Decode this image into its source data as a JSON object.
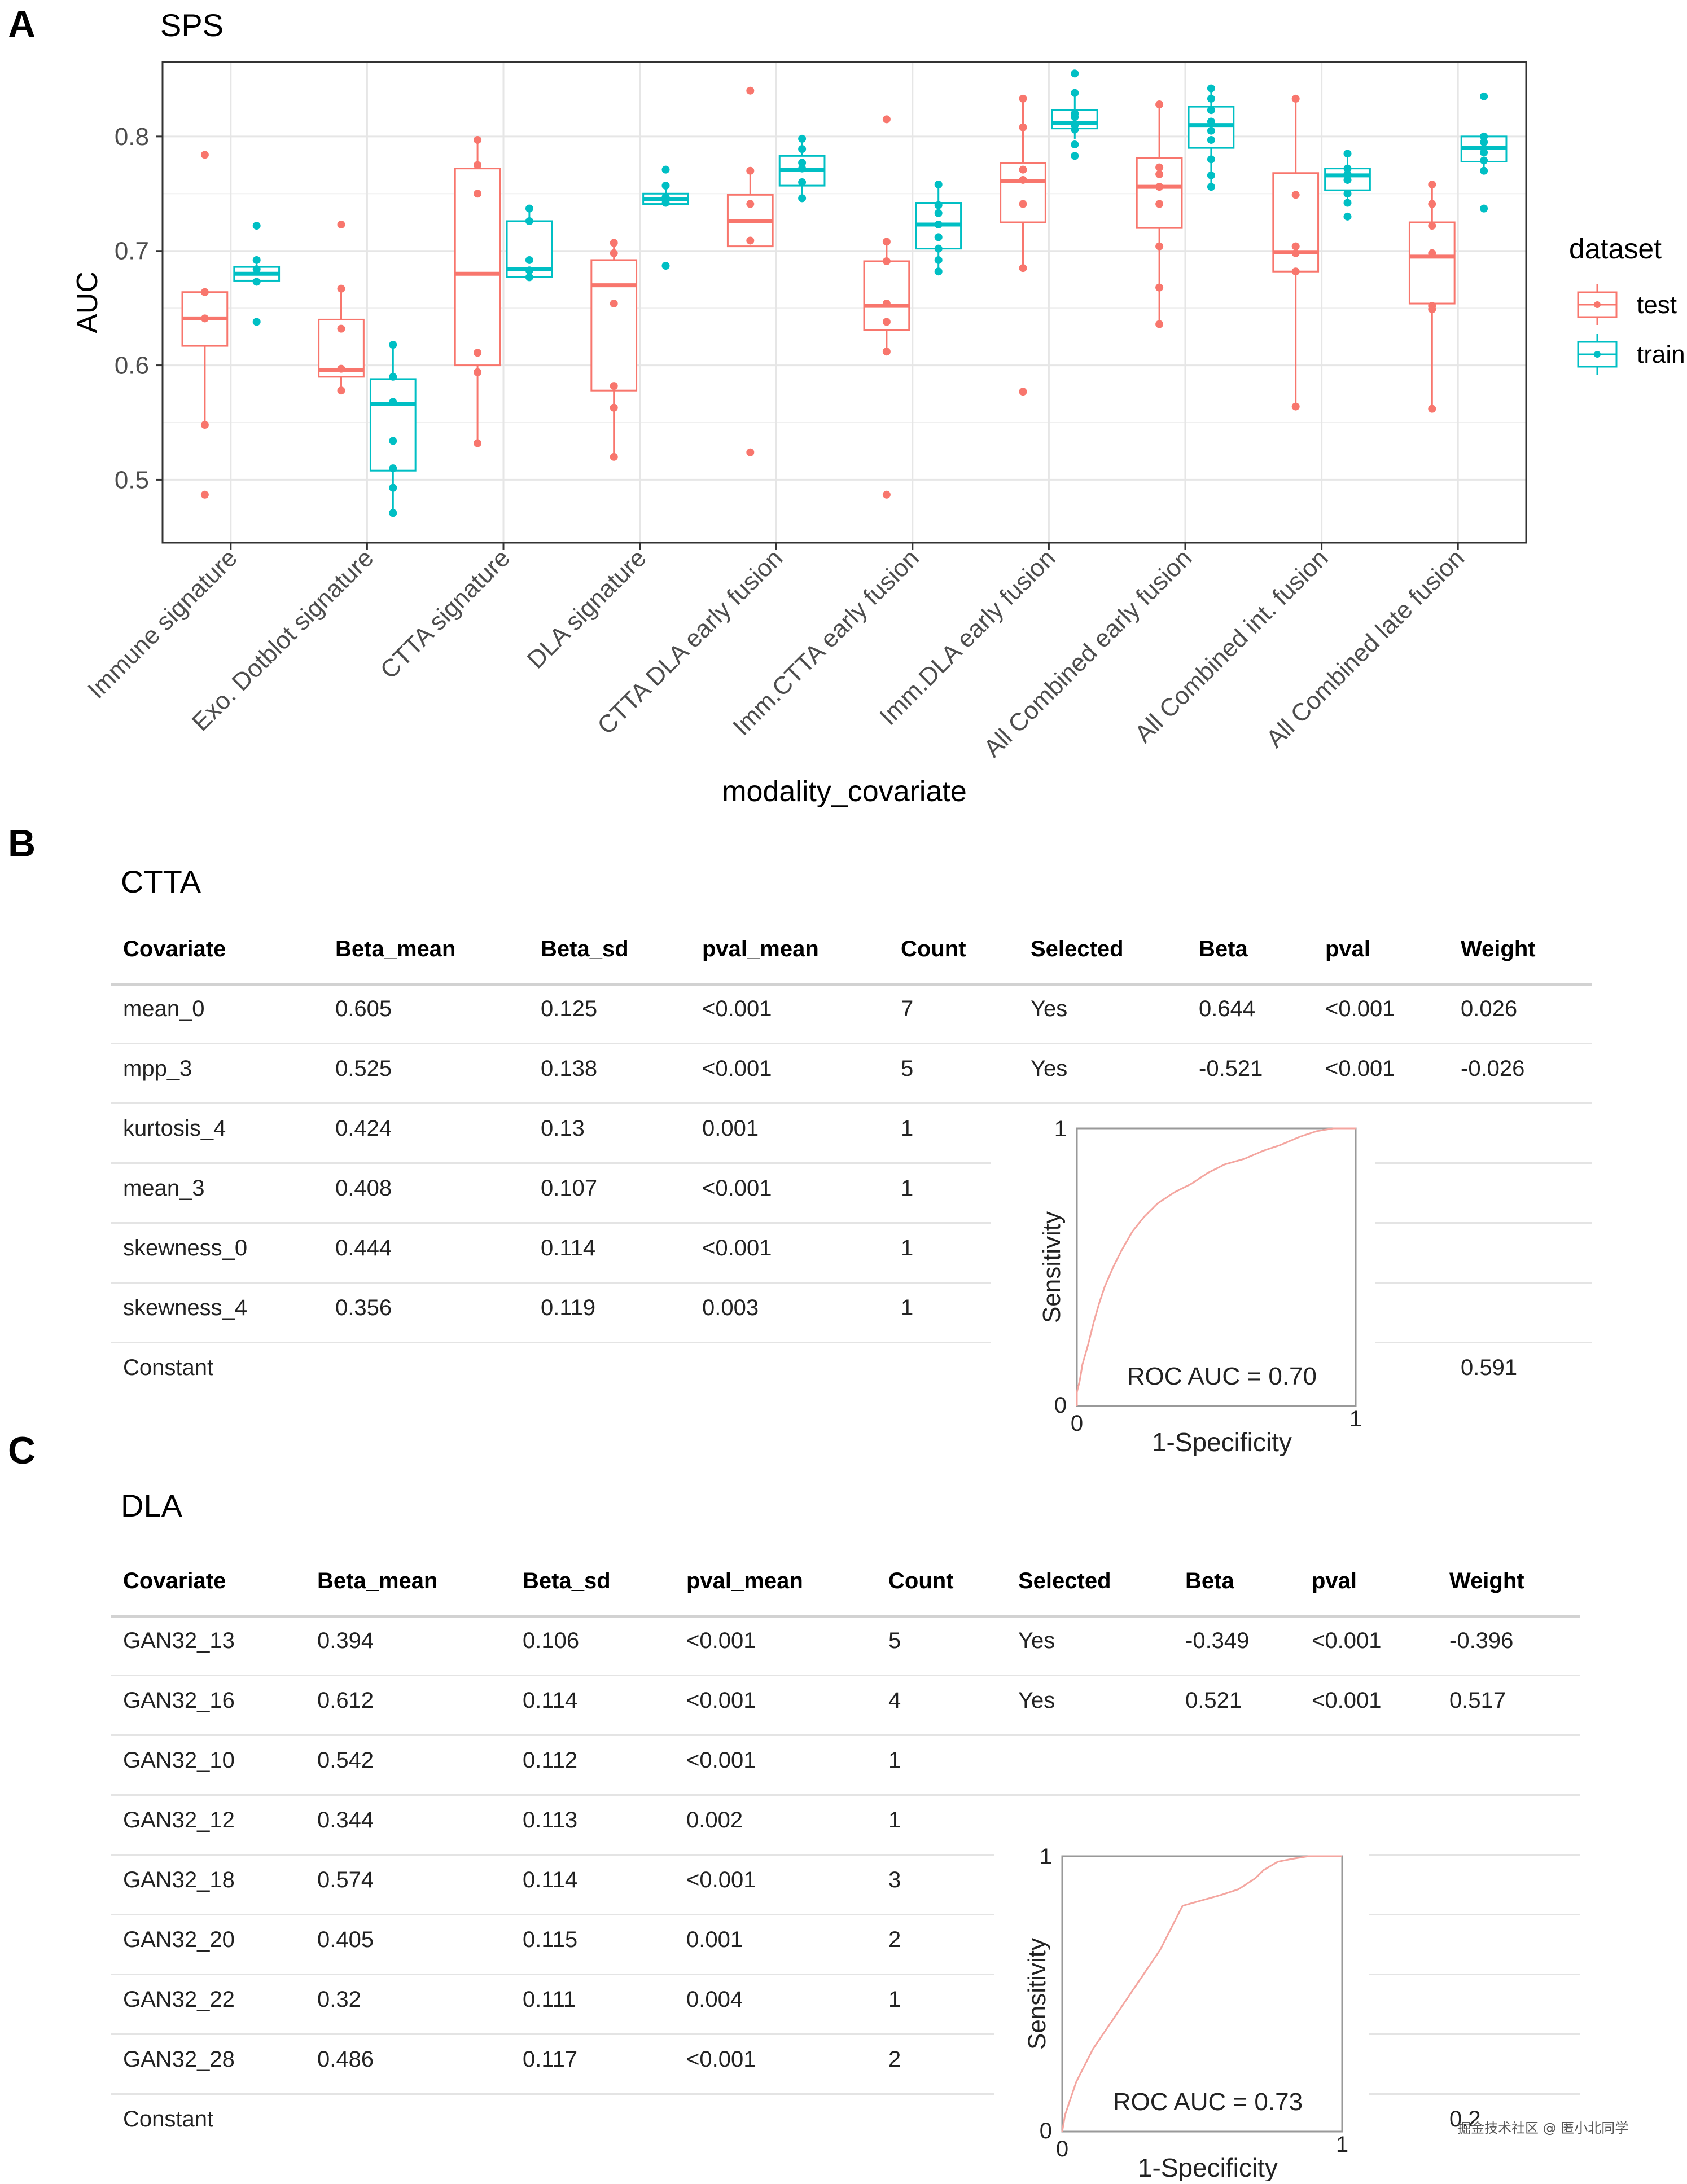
{
  "panels": {
    "a": "A",
    "b": "B",
    "c": "C"
  },
  "chart_data": {
    "type": "box",
    "title": "SPS",
    "xlabel": "modality_covariate",
    "ylabel": "AUC",
    "ylim": [
      0.445,
      0.865
    ],
    "yticks": [
      0.5,
      0.6,
      0.7,
      0.8
    ],
    "ytick_labels": [
      "0.5",
      "0.6",
      "0.7",
      "0.8"
    ],
    "legend": {
      "title": "dataset",
      "position": "right"
    },
    "categories": [
      "Immune signature",
      "Exo. Dotblot signature",
      "CTTA signature",
      "DLA signature",
      "CTTA DLA early fusion",
      "Imm.CTTA early fusion",
      "Imm.DLA early fusion",
      "All Combined early fusion",
      "All Combined int. fusion",
      "All Combined late fusion"
    ],
    "series": [
      {
        "name": "test",
        "color": "#F8766D",
        "boxes": [
          {
            "min": 0.548,
            "q1": 0.617,
            "median": 0.641,
            "q3": 0.664,
            "max": 0.664,
            "points": [
              0.784,
              0.664,
              0.641,
              0.548,
              0.487
            ]
          },
          {
            "min": 0.578,
            "q1": 0.59,
            "median": 0.596,
            "q3": 0.64,
            "max": 0.667,
            "points": [
              0.723,
              0.667,
              0.632,
              0.597,
              0.578
            ]
          },
          {
            "min": 0.532,
            "q1": 0.6,
            "median": 0.68,
            "q3": 0.772,
            "max": 0.797,
            "points": [
              0.797,
              0.775,
              0.75,
              0.611,
              0.594,
              0.532
            ]
          },
          {
            "min": 0.52,
            "q1": 0.578,
            "median": 0.67,
            "q3": 0.692,
            "max": 0.707,
            "points": [
              0.707,
              0.698,
              0.654,
              0.582,
              0.563,
              0.52
            ]
          },
          {
            "min": 0.704,
            "q1": 0.704,
            "median": 0.726,
            "q3": 0.749,
            "max": 0.77,
            "points": [
              0.84,
              0.77,
              0.741,
              0.709,
              0.524
            ]
          },
          {
            "min": 0.612,
            "q1": 0.631,
            "median": 0.652,
            "q3": 0.691,
            "max": 0.708,
            "points": [
              0.815,
              0.708,
              0.691,
              0.654,
              0.638,
              0.612,
              0.487
            ]
          },
          {
            "min": 0.685,
            "q1": 0.725,
            "median": 0.761,
            "q3": 0.777,
            "max": 0.833,
            "points": [
              0.833,
              0.808,
              0.771,
              0.762,
              0.741,
              0.685,
              0.577
            ]
          },
          {
            "min": 0.636,
            "q1": 0.72,
            "median": 0.756,
            "q3": 0.781,
            "max": 0.828,
            "points": [
              0.828,
              0.773,
              0.767,
              0.756,
              0.741,
              0.704,
              0.668,
              0.636
            ]
          },
          {
            "min": 0.564,
            "q1": 0.682,
            "median": 0.699,
            "q3": 0.768,
            "max": 0.833,
            "points": [
              0.833,
              0.749,
              0.704,
              0.698,
              0.682,
              0.564
            ]
          },
          {
            "min": 0.562,
            "q1": 0.654,
            "median": 0.695,
            "q3": 0.725,
            "max": 0.758,
            "points": [
              0.758,
              0.741,
              0.722,
              0.698,
              0.652,
              0.649,
              0.562
            ]
          }
        ]
      },
      {
        "name": "train",
        "color": "#00BFC4",
        "boxes": [
          {
            "min": 0.67,
            "q1": 0.674,
            "median": 0.68,
            "q3": 0.686,
            "max": 0.692,
            "points": [
              0.722,
              0.692,
              0.684,
              0.673,
              0.638
            ]
          },
          {
            "min": 0.471,
            "q1": 0.508,
            "median": 0.566,
            "q3": 0.588,
            "max": 0.618,
            "points": [
              0.618,
              0.59,
              0.568,
              0.534,
              0.51,
              0.493,
              0.471
            ]
          },
          {
            "min": 0.677,
            "q1": 0.677,
            "median": 0.684,
            "q3": 0.726,
            "max": 0.737,
            "points": [
              0.737,
              0.726,
              0.692,
              0.683,
              0.677
            ]
          },
          {
            "min": 0.741,
            "q1": 0.741,
            "median": 0.745,
            "q3": 0.75,
            "max": 0.757,
            "points": [
              0.771,
              0.757,
              0.747,
              0.742,
              0.687
            ]
          },
          {
            "min": 0.746,
            "q1": 0.757,
            "median": 0.771,
            "q3": 0.783,
            "max": 0.798,
            "points": [
              0.798,
              0.789,
              0.777,
              0.772,
              0.76,
              0.746
            ]
          },
          {
            "min": 0.682,
            "q1": 0.702,
            "median": 0.723,
            "q3": 0.742,
            "max": 0.758,
            "points": [
              0.758,
              0.74,
              0.733,
              0.723,
              0.712,
              0.702,
              0.692,
              0.682
            ]
          },
          {
            "min": 0.798,
            "q1": 0.807,
            "median": 0.812,
            "q3": 0.823,
            "max": 0.838,
            "points": [
              0.855,
              0.838,
              0.82,
              0.817,
              0.81,
              0.806,
              0.793,
              0.783
            ]
          },
          {
            "min": 0.756,
            "q1": 0.79,
            "median": 0.81,
            "q3": 0.826,
            "max": 0.842,
            "points": [
              0.842,
              0.833,
              0.823,
              0.813,
              0.805,
              0.797,
              0.78,
              0.766,
              0.756
            ]
          },
          {
            "min": 0.742,
            "q1": 0.753,
            "median": 0.766,
            "q3": 0.772,
            "max": 0.785,
            "points": [
              0.785,
              0.772,
              0.767,
              0.762,
              0.75,
              0.742,
              0.73
            ]
          },
          {
            "min": 0.77,
            "q1": 0.778,
            "median": 0.79,
            "q3": 0.8,
            "max": 0.8,
            "points": [
              0.835,
              0.8,
              0.795,
              0.786,
              0.779,
              0.77,
              0.737
            ]
          }
        ]
      }
    ]
  },
  "table_b": {
    "title": "CTTA",
    "headers": [
      "Covariate",
      "Beta_mean",
      "Beta_sd",
      "pval_mean",
      "Count",
      "Selected",
      "Beta",
      "pval",
      "Weight"
    ],
    "rows": [
      [
        "mean_0",
        "0.605",
        "0.125",
        "<0.001",
        "7",
        "Yes",
        "0.644",
        "<0.001",
        "0.026"
      ],
      [
        "mpp_3",
        "0.525",
        "0.138",
        "<0.001",
        "5",
        "Yes",
        "-0.521",
        "<0.001",
        "-0.026"
      ],
      [
        "kurtosis_4",
        "0.424",
        "0.13",
        "0.001",
        "1",
        "",
        "",
        "",
        ""
      ],
      [
        "mean_3",
        "0.408",
        "0.107",
        "<0.001",
        "1",
        "",
        "",
        "",
        ""
      ],
      [
        "skewness_0",
        "0.444",
        "0.114",
        "<0.001",
        "1",
        "",
        "",
        "",
        ""
      ],
      [
        "skewness_4",
        "0.356",
        "0.119",
        "0.003",
        "1",
        "",
        "",
        "",
        ""
      ],
      [
        "Constant",
        "",
        "",
        "",
        "",
        "",
        "",
        "",
        "0.591"
      ]
    ],
    "roc": {
      "label": "ROC AUC = 0.70",
      "xlabel": "1-Specificity",
      "ylabel": "Sensitivity",
      "x_ticks": [
        "0",
        "1"
      ],
      "y_ticks": [
        "0",
        "1"
      ],
      "color": "#F4A6A0",
      "curve": [
        [
          0,
          0
        ],
        [
          0,
          0.05
        ],
        [
          0.01,
          0.09
        ],
        [
          0.02,
          0.15
        ],
        [
          0.04,
          0.22
        ],
        [
          0.06,
          0.3
        ],
        [
          0.08,
          0.37
        ],
        [
          0.1,
          0.43
        ],
        [
          0.13,
          0.5
        ],
        [
          0.16,
          0.56
        ],
        [
          0.2,
          0.63
        ],
        [
          0.24,
          0.68
        ],
        [
          0.29,
          0.73
        ],
        [
          0.35,
          0.77
        ],
        [
          0.41,
          0.8
        ],
        [
          0.47,
          0.84
        ],
        [
          0.53,
          0.87
        ],
        [
          0.6,
          0.89
        ],
        [
          0.67,
          0.92
        ],
        [
          0.73,
          0.94
        ],
        [
          0.8,
          0.97
        ],
        [
          0.86,
          0.99
        ],
        [
          0.92,
          1.0
        ],
        [
          1,
          1
        ]
      ]
    }
  },
  "table_c": {
    "title": "DLA",
    "headers": [
      "Covariate",
      "Beta_mean",
      "Beta_sd",
      "pval_mean",
      "Count",
      "Selected",
      "Beta",
      "pval",
      "Weight"
    ],
    "rows": [
      [
        "GAN32_13",
        "0.394",
        "0.106",
        "<0.001",
        "5",
        "Yes",
        "-0.349",
        "<0.001",
        "-0.396"
      ],
      [
        "GAN32_16",
        "0.612",
        "0.114",
        "<0.001",
        "4",
        "Yes",
        "0.521",
        "<0.001",
        "0.517"
      ],
      [
        "GAN32_10",
        "0.542",
        "0.112",
        "<0.001",
        "1",
        "",
        "",
        "",
        ""
      ],
      [
        "GAN32_12",
        "0.344",
        "0.113",
        "0.002",
        "1",
        "",
        "",
        "",
        ""
      ],
      [
        "GAN32_18",
        "0.574",
        "0.114",
        "<0.001",
        "3",
        "",
        "",
        "",
        ""
      ],
      [
        "GAN32_20",
        "0.405",
        "0.115",
        "0.001",
        "2",
        "",
        "",
        "",
        ""
      ],
      [
        "GAN32_22",
        "0.32",
        "0.111",
        "0.004",
        "1",
        "",
        "",
        "",
        ""
      ],
      [
        "GAN32_28",
        "0.486",
        "0.117",
        "<0.001",
        "2",
        "",
        "",
        "",
        ""
      ],
      [
        "Constant",
        "",
        "",
        "",
        "",
        "",
        "",
        "",
        "0.2"
      ]
    ],
    "roc": {
      "label": "ROC AUC = 0.73",
      "xlabel": "1-Specificity",
      "ylabel": "Sensitivity",
      "x_ticks": [
        "0",
        "1"
      ],
      "y_ticks": [
        "0",
        "1"
      ],
      "color": "#F4A6A0",
      "curve": [
        [
          0,
          0
        ],
        [
          0.01,
          0.06
        ],
        [
          0.03,
          0.12
        ],
        [
          0.05,
          0.18
        ],
        [
          0.08,
          0.24
        ],
        [
          0.11,
          0.3
        ],
        [
          0.15,
          0.36
        ],
        [
          0.19,
          0.42
        ],
        [
          0.23,
          0.48
        ],
        [
          0.27,
          0.54
        ],
        [
          0.31,
          0.6
        ],
        [
          0.35,
          0.66
        ],
        [
          0.38,
          0.72
        ],
        [
          0.41,
          0.78
        ],
        [
          0.43,
          0.82
        ],
        [
          0.5,
          0.84
        ],
        [
          0.57,
          0.86
        ],
        [
          0.63,
          0.88
        ],
        [
          0.69,
          0.92
        ],
        [
          0.72,
          0.95
        ],
        [
          0.77,
          0.98
        ],
        [
          0.82,
          0.99
        ],
        [
          0.88,
          1.0
        ],
        [
          1,
          1
        ]
      ]
    }
  },
  "watermark": "掘金技术社区 @ 匿小北同学"
}
